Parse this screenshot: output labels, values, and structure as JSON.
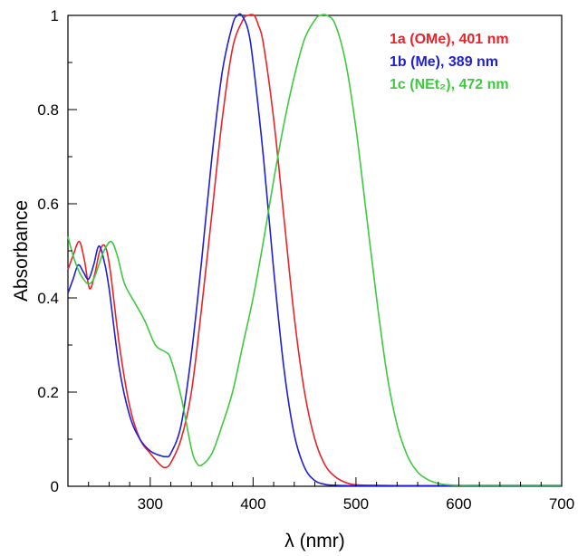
{
  "chart_data": {
    "type": "line",
    "xlabel": "λ (nmr)",
    "ylabel": "Absorbance",
    "xlim": [
      220,
      700
    ],
    "ylim": [
      0,
      1
    ],
    "x_ticks": [
      300,
      400,
      500,
      600,
      700
    ],
    "x_tick_labels": [
      "300",
      "400",
      "500",
      "600",
      "700"
    ],
    "y_ticks": [
      0,
      0.2,
      0.4,
      0.6,
      0.8,
      1
    ],
    "y_tick_labels": [
      "0",
      "0.2",
      "0.4",
      "0.6",
      "0.8",
      "1"
    ],
    "grid": false,
    "legend_position": "top-right",
    "series": [
      {
        "name": "1a (OMe), 401 nm",
        "color": "#e8242a",
        "x": [
          220,
          225,
          231,
          236,
          241,
          246,
          251,
          256,
          261,
          270,
          280,
          290,
          300,
          310,
          315,
          320,
          330,
          340,
          350,
          360,
          370,
          380,
          390,
          395,
          401,
          405,
          410,
          420,
          430,
          440,
          450,
          460,
          470,
          480,
          490,
          500,
          520,
          550,
          600,
          650,
          700
        ],
        "y": [
          0.46,
          0.49,
          0.52,
          0.48,
          0.42,
          0.45,
          0.5,
          0.51,
          0.46,
          0.3,
          0.17,
          0.1,
          0.07,
          0.045,
          0.04,
          0.05,
          0.1,
          0.2,
          0.38,
          0.58,
          0.78,
          0.93,
          0.99,
          1.0,
          1.0,
          0.98,
          0.94,
          0.78,
          0.57,
          0.36,
          0.2,
          0.1,
          0.045,
          0.02,
          0.008,
          0.003,
          0.002,
          0.001,
          0.001,
          0.001,
          0.001
        ]
      },
      {
        "name": "1b (Me), 389 nm",
        "color": "#1f1fd6",
        "x": [
          220,
          225,
          230,
          235,
          240,
          245,
          250,
          255,
          260,
          270,
          280,
          290,
          300,
          310,
          315,
          320,
          330,
          340,
          350,
          360,
          370,
          380,
          385,
          389,
          395,
          400,
          410,
          420,
          430,
          440,
          450,
          460,
          470,
          480,
          500,
          550,
          600,
          650,
          700
        ],
        "y": [
          0.41,
          0.44,
          0.47,
          0.455,
          0.44,
          0.47,
          0.51,
          0.48,
          0.42,
          0.25,
          0.15,
          0.1,
          0.075,
          0.065,
          0.063,
          0.07,
          0.13,
          0.28,
          0.48,
          0.7,
          0.88,
          0.98,
          1.0,
          1.0,
          0.97,
          0.9,
          0.7,
          0.46,
          0.25,
          0.11,
          0.04,
          0.012,
          0.004,
          0.002,
          0.001,
          0.001,
          0.001,
          0.001,
          0.001
        ]
      },
      {
        "name": "1c (NEt₂), 472 nm",
        "color": "#3ec93e",
        "x": [
          220,
          225,
          230,
          235,
          240,
          245,
          250,
          255,
          262,
          268,
          275,
          285,
          295,
          305,
          315,
          320,
          330,
          340,
          345,
          350,
          360,
          370,
          380,
          390,
          400,
          410,
          420,
          430,
          440,
          450,
          460,
          465,
          472,
          480,
          490,
          500,
          510,
          520,
          530,
          540,
          550,
          560,
          570,
          580,
          590,
          600,
          620,
          650,
          700
        ],
        "y": [
          0.53,
          0.49,
          0.46,
          0.44,
          0.43,
          0.44,
          0.47,
          0.5,
          0.52,
          0.49,
          0.43,
          0.39,
          0.35,
          0.3,
          0.285,
          0.27,
          0.19,
          0.08,
          0.05,
          0.045,
          0.07,
          0.13,
          0.2,
          0.3,
          0.4,
          0.52,
          0.65,
          0.77,
          0.87,
          0.95,
          0.99,
          1.0,
          1.0,
          0.98,
          0.9,
          0.76,
          0.58,
          0.4,
          0.24,
          0.13,
          0.065,
          0.03,
          0.014,
          0.006,
          0.003,
          0.002,
          0.002,
          0.002,
          0.002
        ]
      }
    ]
  }
}
